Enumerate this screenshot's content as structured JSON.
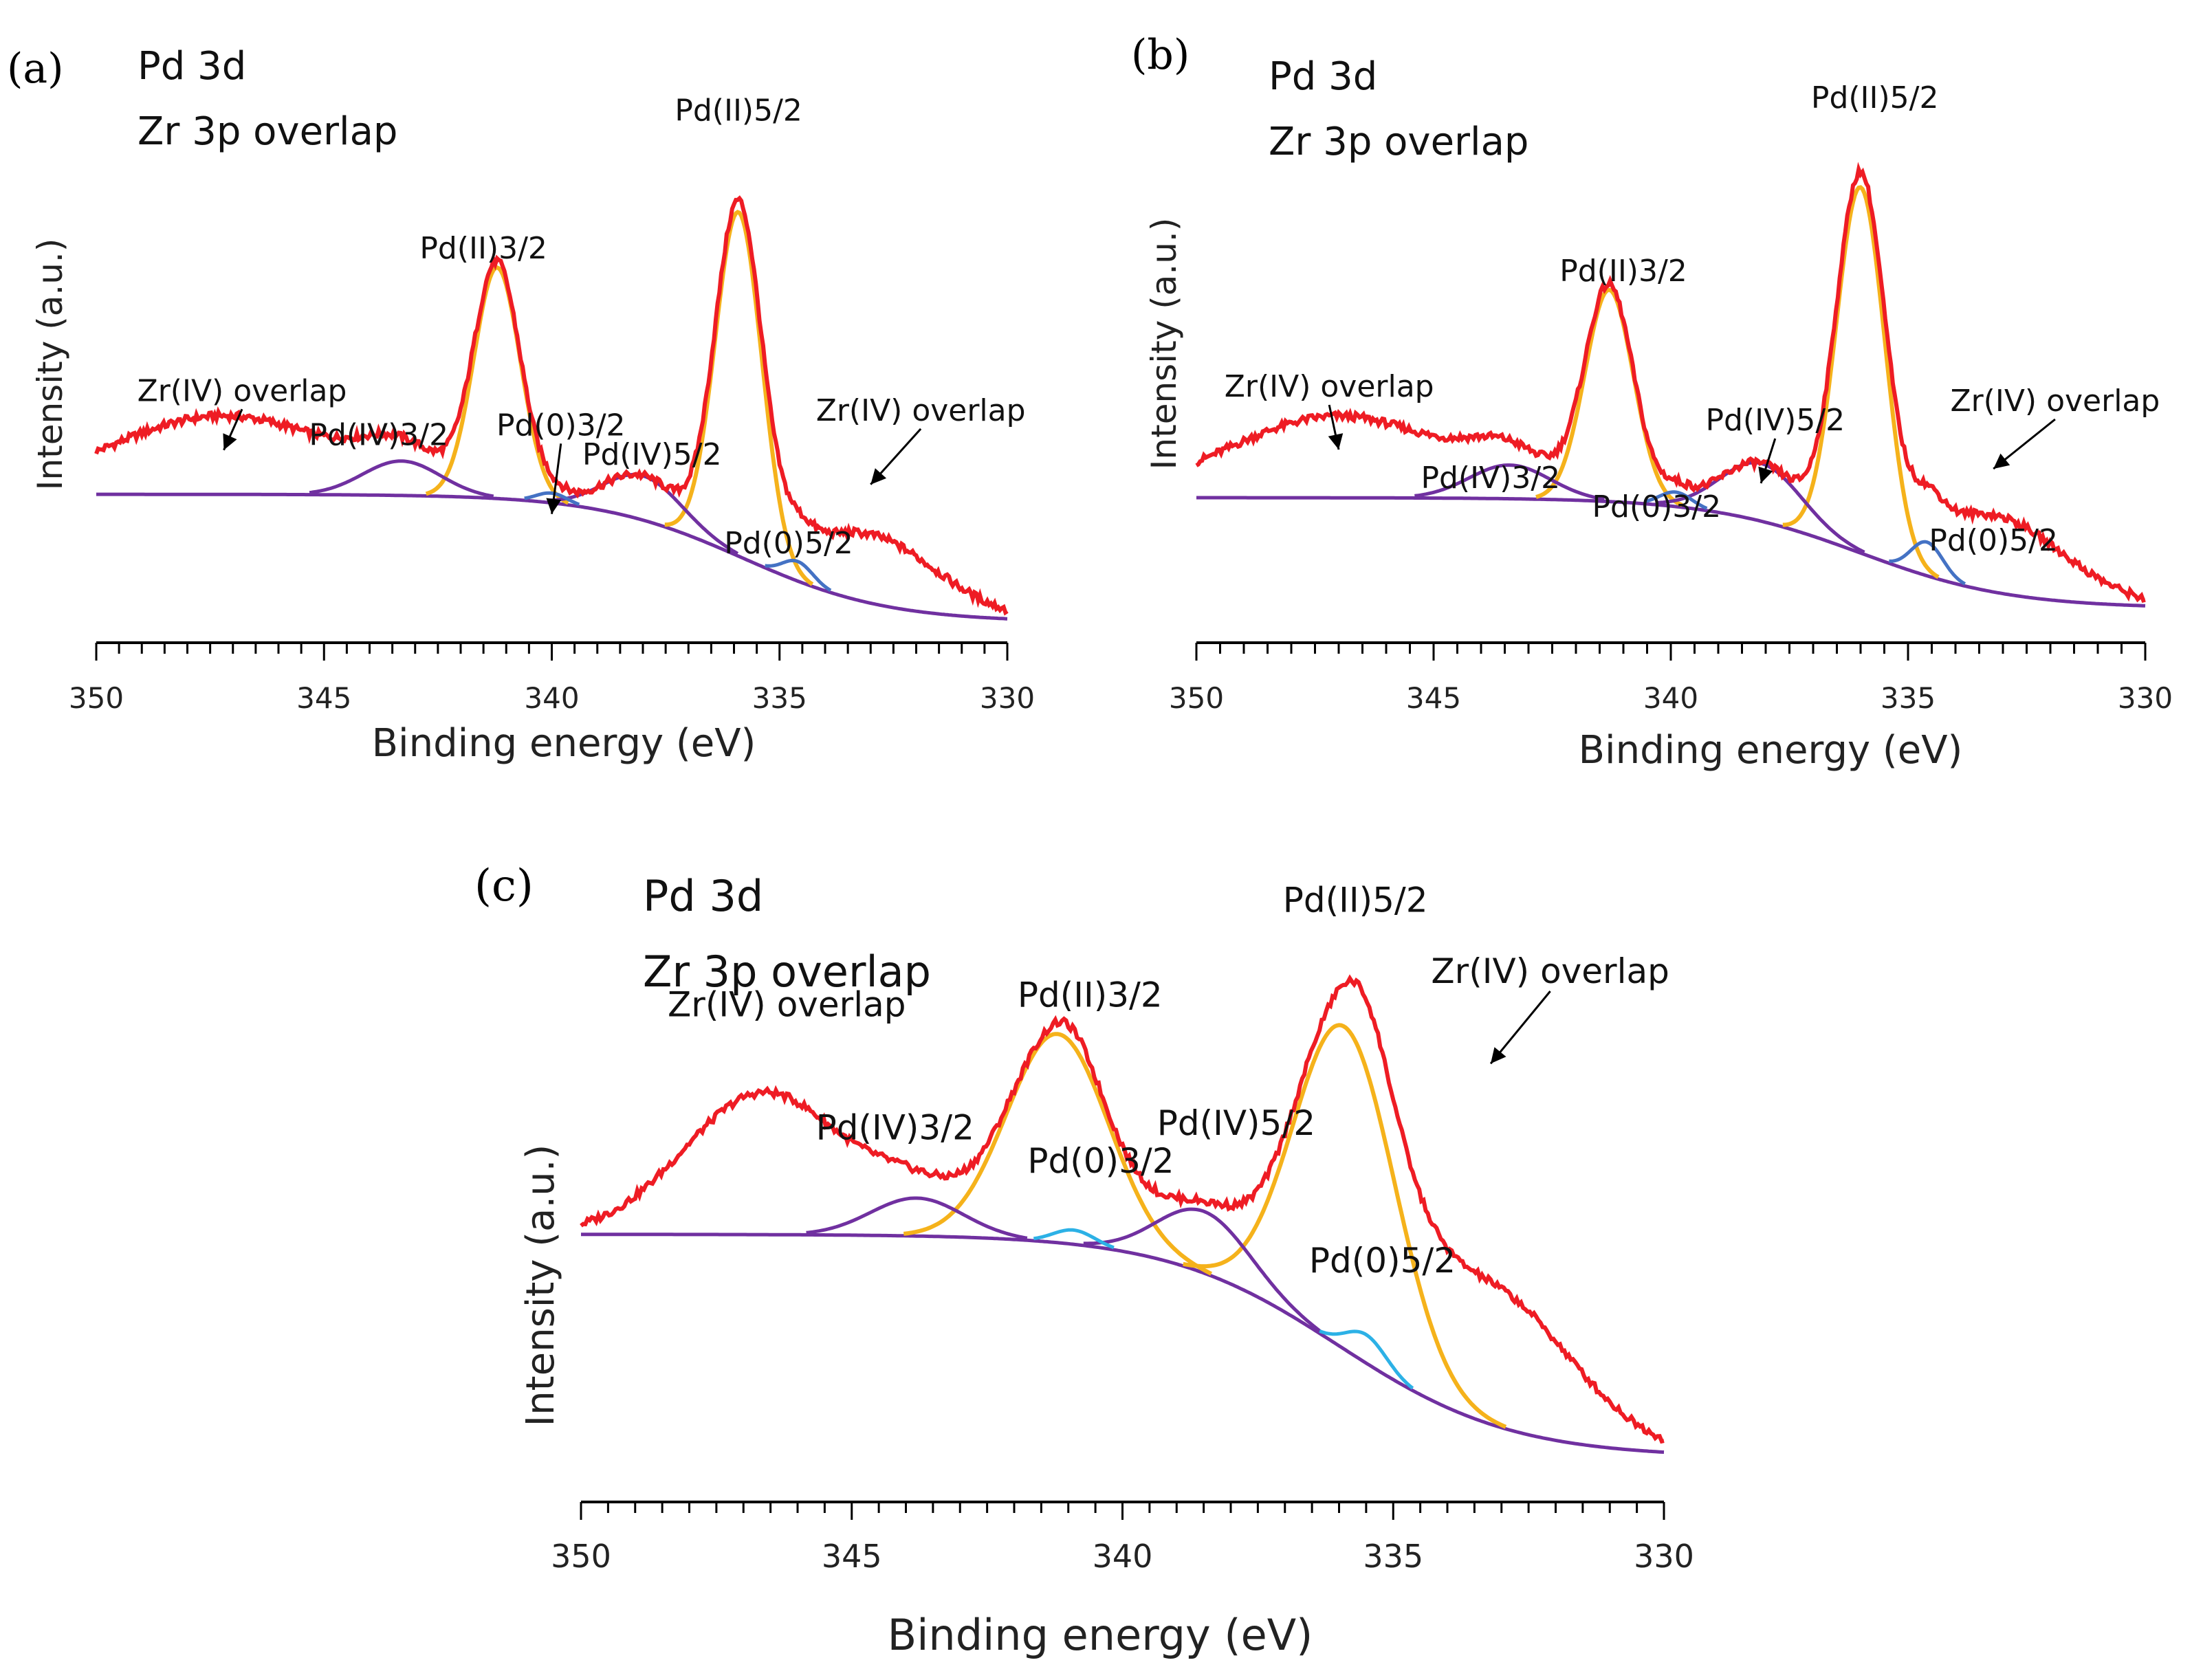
{
  "panels": [
    {
      "id": "a",
      "label": "(a)",
      "title_lines": [
        "Pd 3d",
        "Zr 3p overlap"
      ],
      "chart_data": {
        "type": "line",
        "xlabel": "Binding energy (eV)",
        "ylabel": "Intensity (a.u.)",
        "xlim": [
          350,
          330
        ],
        "ylim": [
          0,
          100
        ],
        "x_ticks": [
          350,
          345,
          340,
          335,
          330
        ],
        "x_tick_labels": [
          "350",
          "345",
          "340",
          "335",
          "330"
        ],
        "colors": {
          "envelope": "#ee1c24",
          "pd2": "#f5b21b",
          "pd4": "#7030a0",
          "pd0": "#4472c4",
          "background": "#7030a0"
        },
        "background": {
          "start": 26,
          "end": 0,
          "mid": 335.8
        },
        "components": [
          {
            "name": "Pd(II)5/2",
            "state": "pd2",
            "center": 335.9,
            "height": 70,
            "fwhm": 1.2
          },
          {
            "name": "Pd(II)3/2",
            "state": "pd2",
            "center": 341.2,
            "height": 47,
            "fwhm": 1.2
          },
          {
            "name": "Pd(IV)5/2",
            "state": "pd4",
            "center": 338.0,
            "height": 9,
            "fwhm": 2.0
          },
          {
            "name": "Pd(IV)3/2",
            "state": "pd4",
            "center": 343.3,
            "height": 7,
            "fwhm": 2.0
          },
          {
            "name": "Pd(0)5/2",
            "state": "pd0",
            "center": 334.6,
            "height": 4,
            "fwhm": 0.8
          },
          {
            "name": "Pd(0)3/2",
            "state": "pd0",
            "center": 340.0,
            "height": 2,
            "fwhm": 0.8
          }
        ],
        "zr_overlap": [
          {
            "center": 347.2,
            "height": 16,
            "fwhm": 6.0
          },
          {
            "center": 333.0,
            "height": 14,
            "fwhm": 3.5
          }
        ],
        "annotations": [
          {
            "text": "Pd(II)5/2",
            "at_x": 335.9,
            "label_x": 335.9,
            "label_y": 102
          },
          {
            "text": "Pd(II)3/2",
            "at_x": 341.2,
            "label_x": 341.5,
            "label_y": 74
          },
          {
            "text": "Zr(IV) overlap",
            "at_x": 347.2,
            "label_x": 346.8,
            "label_y": 45,
            "arrow": true,
            "arrow_to_y": 35
          },
          {
            "text": "Pd(IV)3/2",
            "at_x": 343.3,
            "label_x": 343.8,
            "label_y": 36
          },
          {
            "text": "Pd(0)3/2",
            "at_x": 340.0,
            "label_x": 339.8,
            "label_y": 38,
            "arrow": true,
            "arrow_to_y": 22
          },
          {
            "text": "Pd(IV)5/2",
            "at_x": 338.0,
            "label_x": 337.8,
            "label_y": 32
          },
          {
            "text": "Pd(0)5/2",
            "at_x": 334.6,
            "label_x": 334.8,
            "label_y": 14
          },
          {
            "text": "Zr(IV) overlap",
            "at_x": 333.0,
            "label_x": 331.9,
            "label_y": 41,
            "arrow": true,
            "arrow_to_y": 28
          }
        ]
      }
    },
    {
      "id": "b",
      "label": "(b)",
      "title_lines": [
        "Pd 3d",
        "Zr 3p overlap"
      ],
      "chart_data": {
        "type": "line",
        "xlabel": "Binding energy (eV)",
        "ylabel": "Intensity (a.u.)",
        "xlim": [
          350,
          330
        ],
        "ylim": [
          0,
          100
        ],
        "x_ticks": [
          350,
          345,
          340,
          335,
          330
        ],
        "x_tick_labels": [
          "350",
          "345",
          "340",
          "335",
          "330"
        ],
        "colors": {
          "envelope": "#ee1c24",
          "pd2": "#f5b21b",
          "pd4": "#7030a0",
          "pd0": "#4472c4",
          "background": "#7030a0"
        },
        "background": {
          "start": 23,
          "end": 0,
          "mid": 336.0
        },
        "components": [
          {
            "name": "Pd(II)5/2",
            "state": "pd2",
            "center": 336.0,
            "height": 76,
            "fwhm": 1.2
          },
          {
            "name": "Pd(II)3/2",
            "state": "pd2",
            "center": 341.3,
            "height": 44,
            "fwhm": 1.2
          },
          {
            "name": "Pd(IV)5/2",
            "state": "pd4",
            "center": 338.1,
            "height": 12,
            "fwhm": 2.0
          },
          {
            "name": "Pd(IV)3/2",
            "state": "pd4",
            "center": 343.4,
            "height": 7,
            "fwhm": 2.0
          },
          {
            "name": "Pd(0)5/2",
            "state": "pd0",
            "center": 334.6,
            "height": 7,
            "fwhm": 0.8
          },
          {
            "name": "Pd(0)3/2",
            "state": "pd0",
            "center": 339.9,
            "height": 3,
            "fwhm": 0.8
          }
        ],
        "zr_overlap": [
          {
            "center": 347.0,
            "height": 17,
            "fwhm": 5.5
          },
          {
            "center": 333.2,
            "height": 16,
            "fwhm": 3.5
          }
        ],
        "annotations": [
          {
            "text": "Pd(II)5/2",
            "at_x": 336.0,
            "label_x": 335.7,
            "label_y": 104
          },
          {
            "text": "Pd(II)3/2",
            "at_x": 341.3,
            "label_x": 341.0,
            "label_y": 68
          },
          {
            "text": "Zr(IV) overlap",
            "at_x": 347.0,
            "label_x": 347.2,
            "label_y": 44,
            "arrow": true,
            "arrow_to_y": 33
          },
          {
            "text": "Pd(IV)3/2",
            "at_x": 343.4,
            "label_x": 343.8,
            "label_y": 25
          },
          {
            "text": "Pd(0)3/2",
            "at_x": 339.9,
            "label_x": 340.3,
            "label_y": 19
          },
          {
            "text": "Pd(IV)5/2",
            "at_x": 338.1,
            "label_x": 337.8,
            "label_y": 37,
            "arrow": true,
            "arrow_to_y": 26
          },
          {
            "text": "Zr(IV) overlap",
            "at_x": 333.2,
            "label_x": 331.9,
            "label_y": 41,
            "arrow": true,
            "arrow_to_y": 29
          },
          {
            "text": "Pd(0)5/2",
            "at_x": 334.6,
            "label_x": 333.2,
            "label_y": 12
          }
        ]
      }
    },
    {
      "id": "c",
      "label": "(c)",
      "title_lines": [
        "Pd 3d",
        "Zr 3p overlap"
      ],
      "chart_data": {
        "type": "line",
        "xlabel": "Binding energy (eV)",
        "ylabel": "Intensity (a.u.)",
        "xlim": [
          350,
          330
        ],
        "ylim": [
          0,
          100
        ],
        "x_ticks": [
          350,
          345,
          340,
          335,
          330
        ],
        "x_tick_labels": [
          "350",
          "345",
          "340",
          "335",
          "330"
        ],
        "colors": {
          "envelope": "#ee1c24",
          "pd2": "#f5b21b",
          "pd4": "#7030a0",
          "pd0": "#2cb1e6",
          "background": "#7030a0"
        },
        "background": {
          "start": 47,
          "end": 0,
          "mid": 336.0
        },
        "components": [
          {
            "name": "Pd(II)5/2",
            "state": "pd2",
            "center": 335.9,
            "height": 68,
            "fwhm": 2.2
          },
          {
            "name": "Pd(II)3/2",
            "state": "pd2",
            "center": 341.2,
            "height": 44,
            "fwhm": 2.2
          },
          {
            "name": "Pd(IV)5/2",
            "state": "pd4",
            "center": 338.5,
            "height": 13,
            "fwhm": 2.0
          },
          {
            "name": "Pd(IV)3/2",
            "state": "pd4",
            "center": 343.8,
            "height": 8,
            "fwhm": 2.0
          },
          {
            "name": "Pd(0)5/2",
            "state": "pd0",
            "center": 335.5,
            "height": 6,
            "fwhm": 0.9
          },
          {
            "name": "Pd(0)3/2",
            "state": "pd0",
            "center": 340.9,
            "height": 3,
            "fwhm": 0.9
          }
        ],
        "zr_overlap": [
          {
            "center": 346.6,
            "height": 30,
            "fwhm": 3.5
          },
          {
            "center": 333.2,
            "height": 29,
            "fwhm": 3.5
          }
        ],
        "annotations": [
          {
            "text": "Pd(II)5/2",
            "at_x": 335.9,
            "label_x": 335.7,
            "label_y": 115
          },
          {
            "text": "Pd(II)3/2",
            "at_x": 341.2,
            "label_x": 340.6,
            "label_y": 95
          },
          {
            "text": "Zr(IV) overlap",
            "at_x": 346.6,
            "label_x": 346.2,
            "label_y": 93
          },
          {
            "text": "Zr(IV) overlap",
            "at_x": 333.2,
            "label_x": 332.1,
            "label_y": 100,
            "arrow": true,
            "arrow_to_y": 83
          },
          {
            "text": "Pd(IV)3/2",
            "at_x": 343.8,
            "label_x": 344.2,
            "label_y": 67
          },
          {
            "text": "Pd(0)3/2",
            "at_x": 340.9,
            "label_x": 340.4,
            "label_y": 60
          },
          {
            "text": "Pd(IV)5/2",
            "at_x": 338.5,
            "label_x": 337.9,
            "label_y": 68
          },
          {
            "text": "Pd(0)5/2",
            "at_x": 335.5,
            "label_x": 335.2,
            "label_y": 39
          }
        ]
      }
    }
  ]
}
